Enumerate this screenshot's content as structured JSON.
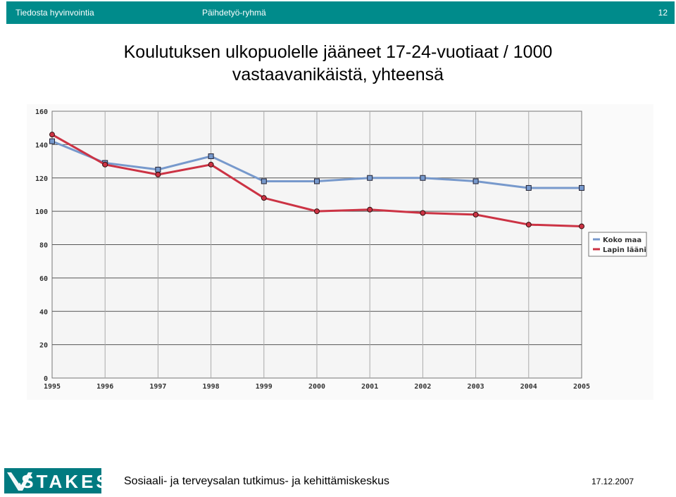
{
  "header": {
    "left": "Tiedosta hyvinvointia",
    "center": "Päihdetyö-ryhmä",
    "page_number": "12"
  },
  "title": {
    "line1": "Koulutuksen ulkopuolelle jääneet 17-24-vuotiaat / 1000",
    "line2": "vastaavanikäistä, yhteensä"
  },
  "chart_data": {
    "type": "line",
    "x": [
      "1995",
      "1996",
      "1997",
      "1998",
      "1999",
      "2000",
      "2001",
      "2002",
      "2003",
      "2004",
      "2005"
    ],
    "series": [
      {
        "name": "Koko maa",
        "values": [
          142,
          129,
          125,
          133,
          118,
          118,
          120,
          120,
          118,
          114,
          114
        ],
        "color": "#7799cc",
        "marker": "square"
      },
      {
        "name": "Lapin lääni",
        "values": [
          146,
          128,
          122,
          128,
          108,
          100,
          101,
          99,
          98,
          92,
          91
        ],
        "color": "#cc3344",
        "marker": "circle"
      }
    ],
    "ylim": [
      0,
      160
    ],
    "yticks": [
      "0",
      "20",
      "40",
      "60",
      "80",
      "100",
      "120",
      "140",
      "160"
    ],
    "grid": true,
    "legend": "right"
  },
  "footer": {
    "logo_text": "STAKES",
    "organization": "Sosiaali- ja terveysalan tutkimus- ja kehittämiskeskus",
    "date": "17.12.2007"
  },
  "colors": {
    "header_bg": "#008b8b",
    "logo_bg": "#007a80",
    "plot_bg": "#f5f5f5"
  }
}
